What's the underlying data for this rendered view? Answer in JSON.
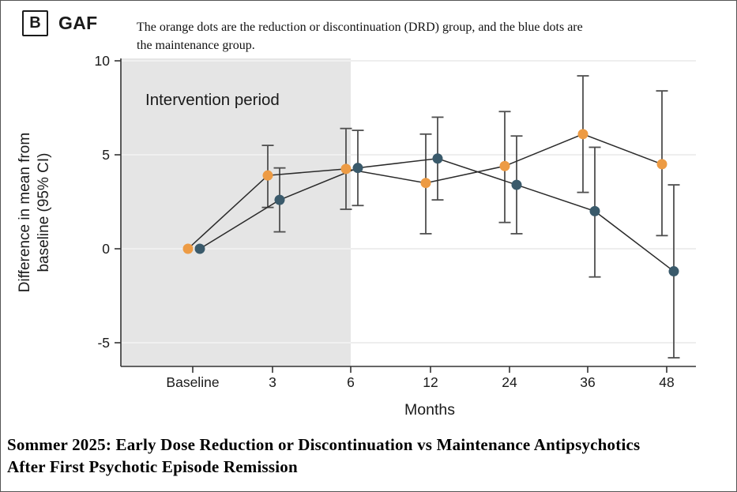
{
  "figure": {
    "panel_label": "B",
    "panel_title": "GAF",
    "caption_line1": "The orange dots are the reduction or discontinuation (DRD) group, and the blue dots are",
    "caption_line2": "the maintenance group."
  },
  "footer": {
    "line1": "Sommer 2025: Early Dose Reduction or Discontinuation vs Maintenance Antipsychotics",
    "line2": "After First Psychotic Episode Remission"
  },
  "chart_data": {
    "type": "line",
    "title": "GAF",
    "categories": [
      "Baseline",
      "3",
      "6",
      "12",
      "24",
      "36",
      "48"
    ],
    "xlabel": "Months",
    "ylabel_line1": "Difference in mean from",
    "ylabel_line2": "baseline (95% CI)",
    "yticks": [
      10,
      5,
      0,
      -5
    ],
    "ylim": [
      -6.3,
      10.3
    ],
    "grid": true,
    "annotation": "Intervention period",
    "shaded_region": {
      "label": "Intervention period",
      "from_category": "Baseline",
      "to_category": "6",
      "color": "#e5e5e5"
    },
    "series": [
      {
        "name": "Reduction or discontinuation (DRD)",
        "slug": "drd",
        "color": "#ED9B44",
        "values": [
          0,
          3.9,
          4.25,
          3.5,
          4.4,
          6.1,
          4.5
        ],
        "ci_low": [
          null,
          2.2,
          2.1,
          0.8,
          1.4,
          3.0,
          0.7
        ],
        "ci_high": [
          null,
          5.5,
          6.4,
          6.1,
          7.3,
          9.2,
          8.4
        ]
      },
      {
        "name": "Maintenance",
        "slug": "maintenance",
        "color": "#3A5A6B",
        "values": [
          0,
          2.6,
          4.3,
          4.8,
          3.4,
          2.0,
          -1.2
        ],
        "ci_low": [
          null,
          0.9,
          2.3,
          2.6,
          0.8,
          -1.5,
          -5.8
        ],
        "ci_high": [
          null,
          4.3,
          6.3,
          7.0,
          6.0,
          5.4,
          3.4
        ]
      }
    ],
    "style_colors": {
      "axis": "#333333",
      "connect_line": "#2a2a2a",
      "error_bar": "#4f4f4f",
      "gridline_on_white": "#e9e9e9",
      "gridline_on_gray": "#f4f4f4"
    }
  }
}
